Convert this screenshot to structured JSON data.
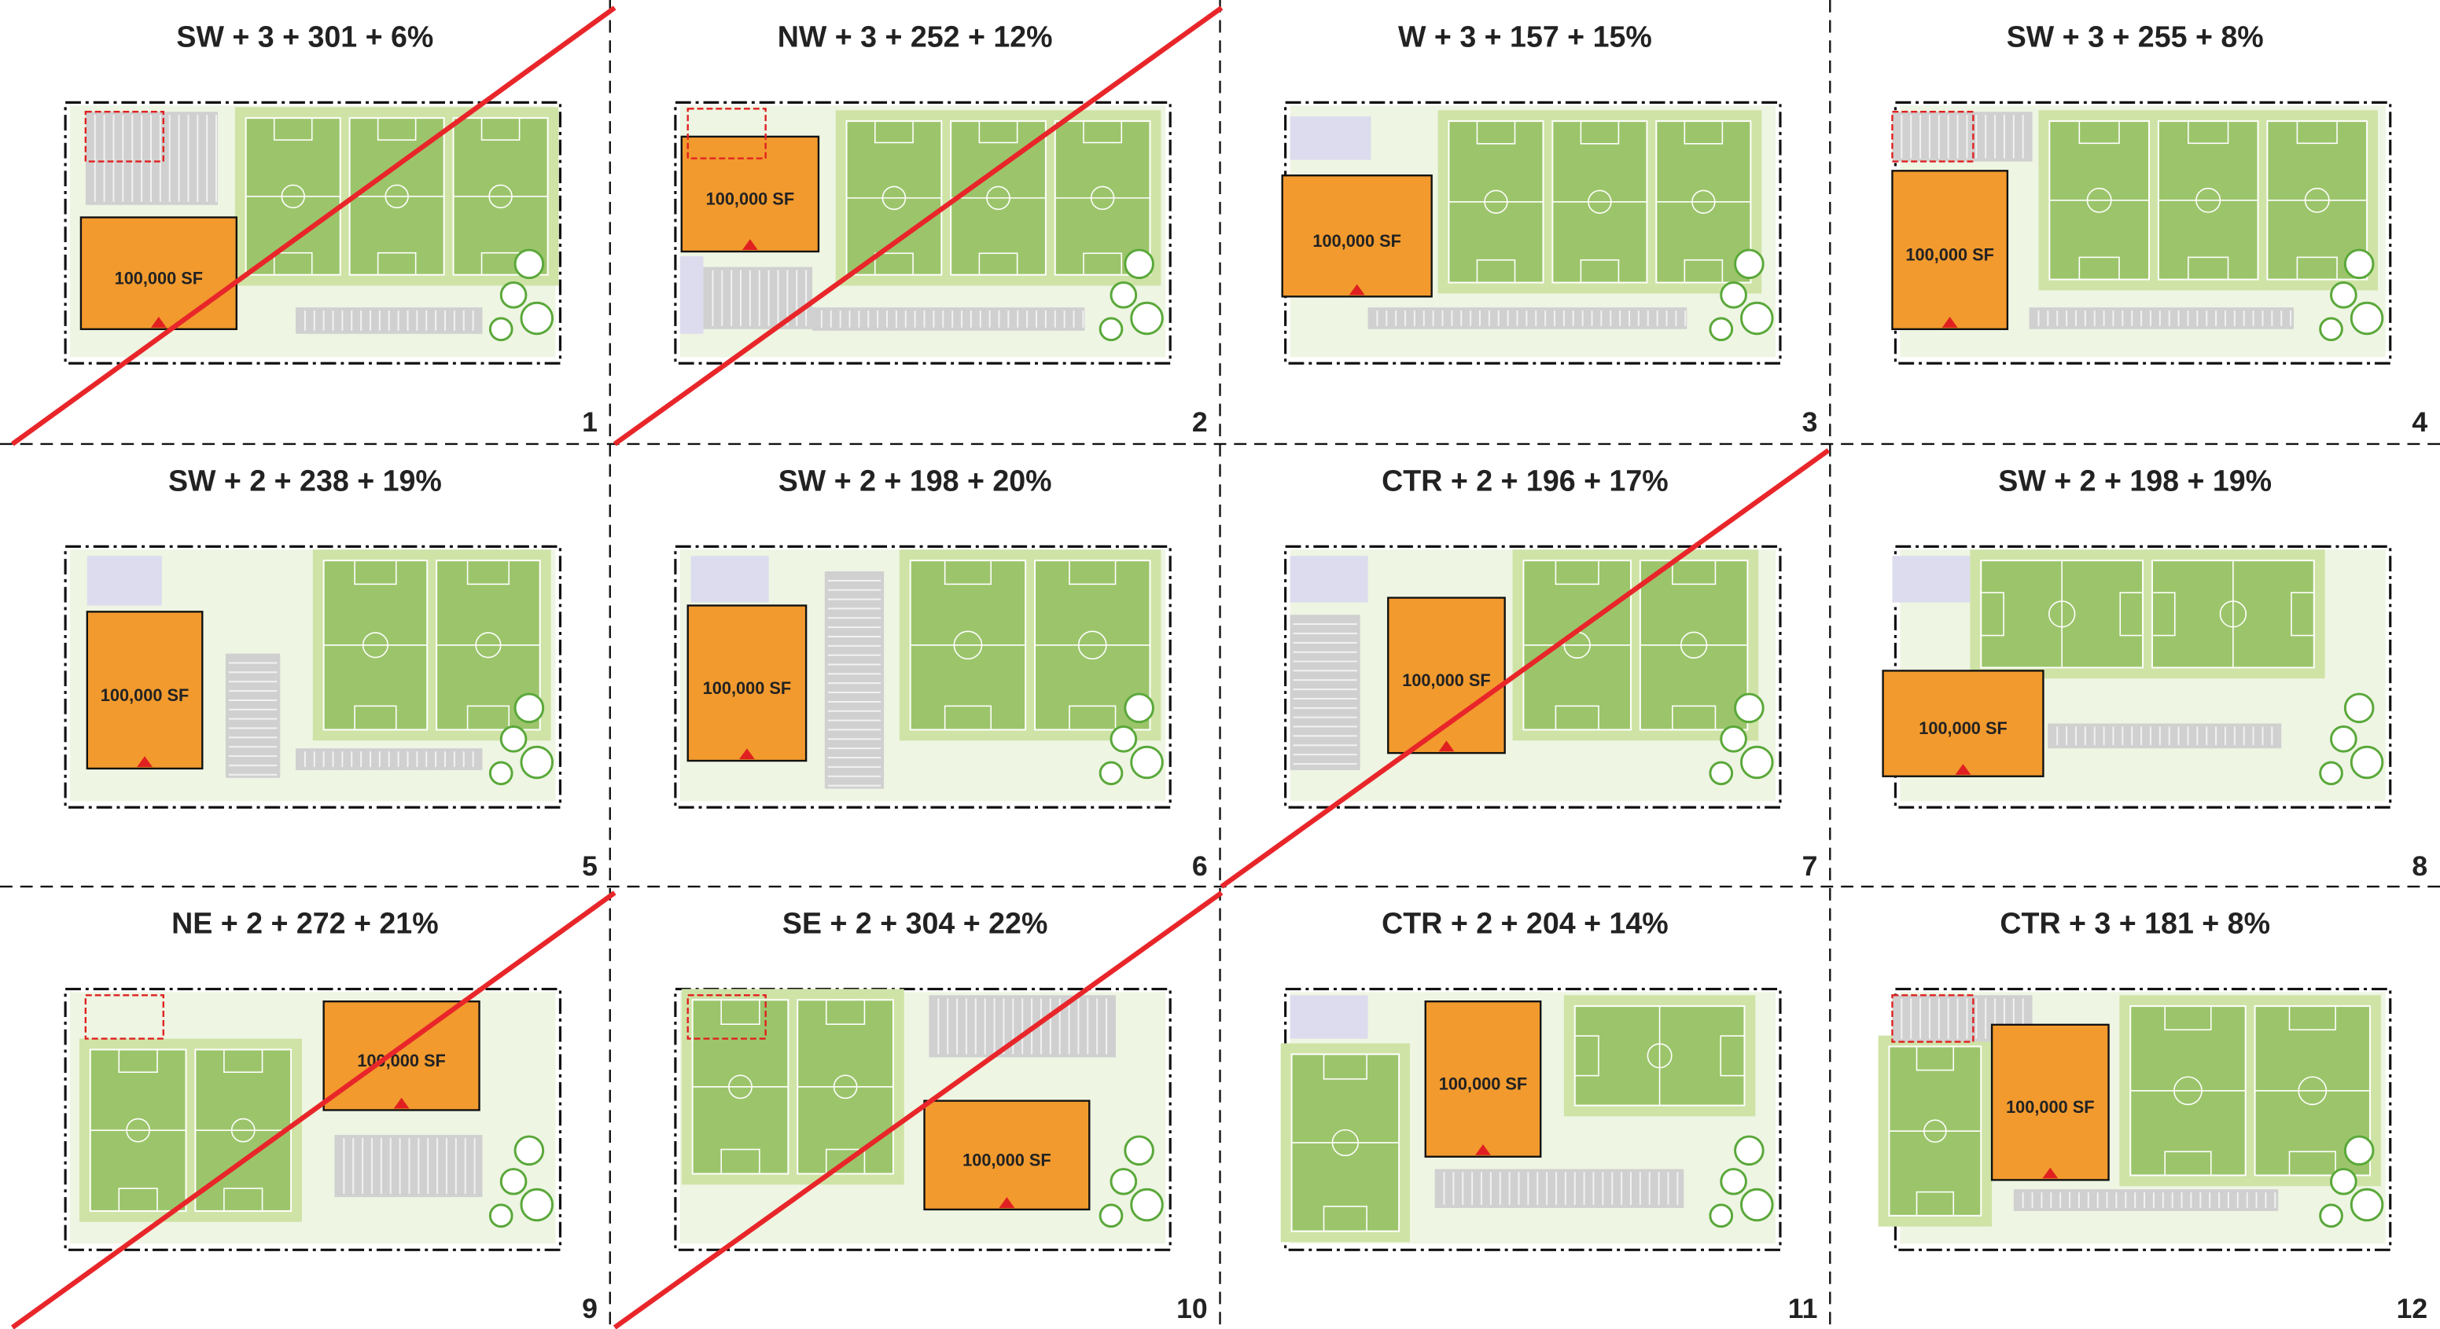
{
  "panels": [
    {
      "title": "SW + 3 + 301 + 6%",
      "number": "1",
      "building_label": "100,000 SF"
    },
    {
      "title": "NW + 3 + 252 + 12%",
      "number": "2",
      "building_label": "100,000 SF"
    },
    {
      "title": "W + 3 + 157 + 15%",
      "number": "3",
      "building_label": "100,000 SF"
    },
    {
      "title": "SW + 3 + 255 + 8%",
      "number": "4",
      "building_label": "100,000 SF"
    },
    {
      "title": "SW + 2 + 238 + 19%",
      "number": "5",
      "building_label": "100,000 SF"
    },
    {
      "title": "SW + 2 + 198 + 20%",
      "number": "6",
      "building_label": "100,000 SF"
    },
    {
      "title": "CTR + 2 + 196 + 17%",
      "number": "7",
      "building_label": "100,000 SF"
    },
    {
      "title": "SW + 2 + 198 + 19%",
      "number": "8",
      "building_label": "100,000 SF"
    },
    {
      "title": "NE + 2 + 272 + 21%",
      "number": "9",
      "building_label": "100,000 SF"
    },
    {
      "title": "SE + 2 + 304 + 22%",
      "number": "10",
      "building_label": "100,000 SF"
    },
    {
      "title": "CTR + 2 + 204 + 14%",
      "number": "11",
      "building_label": "100,000 SF"
    },
    {
      "title": "CTR + 3 + 181 + 8%",
      "number": "12",
      "building_label": "100,000 SF"
    }
  ]
}
